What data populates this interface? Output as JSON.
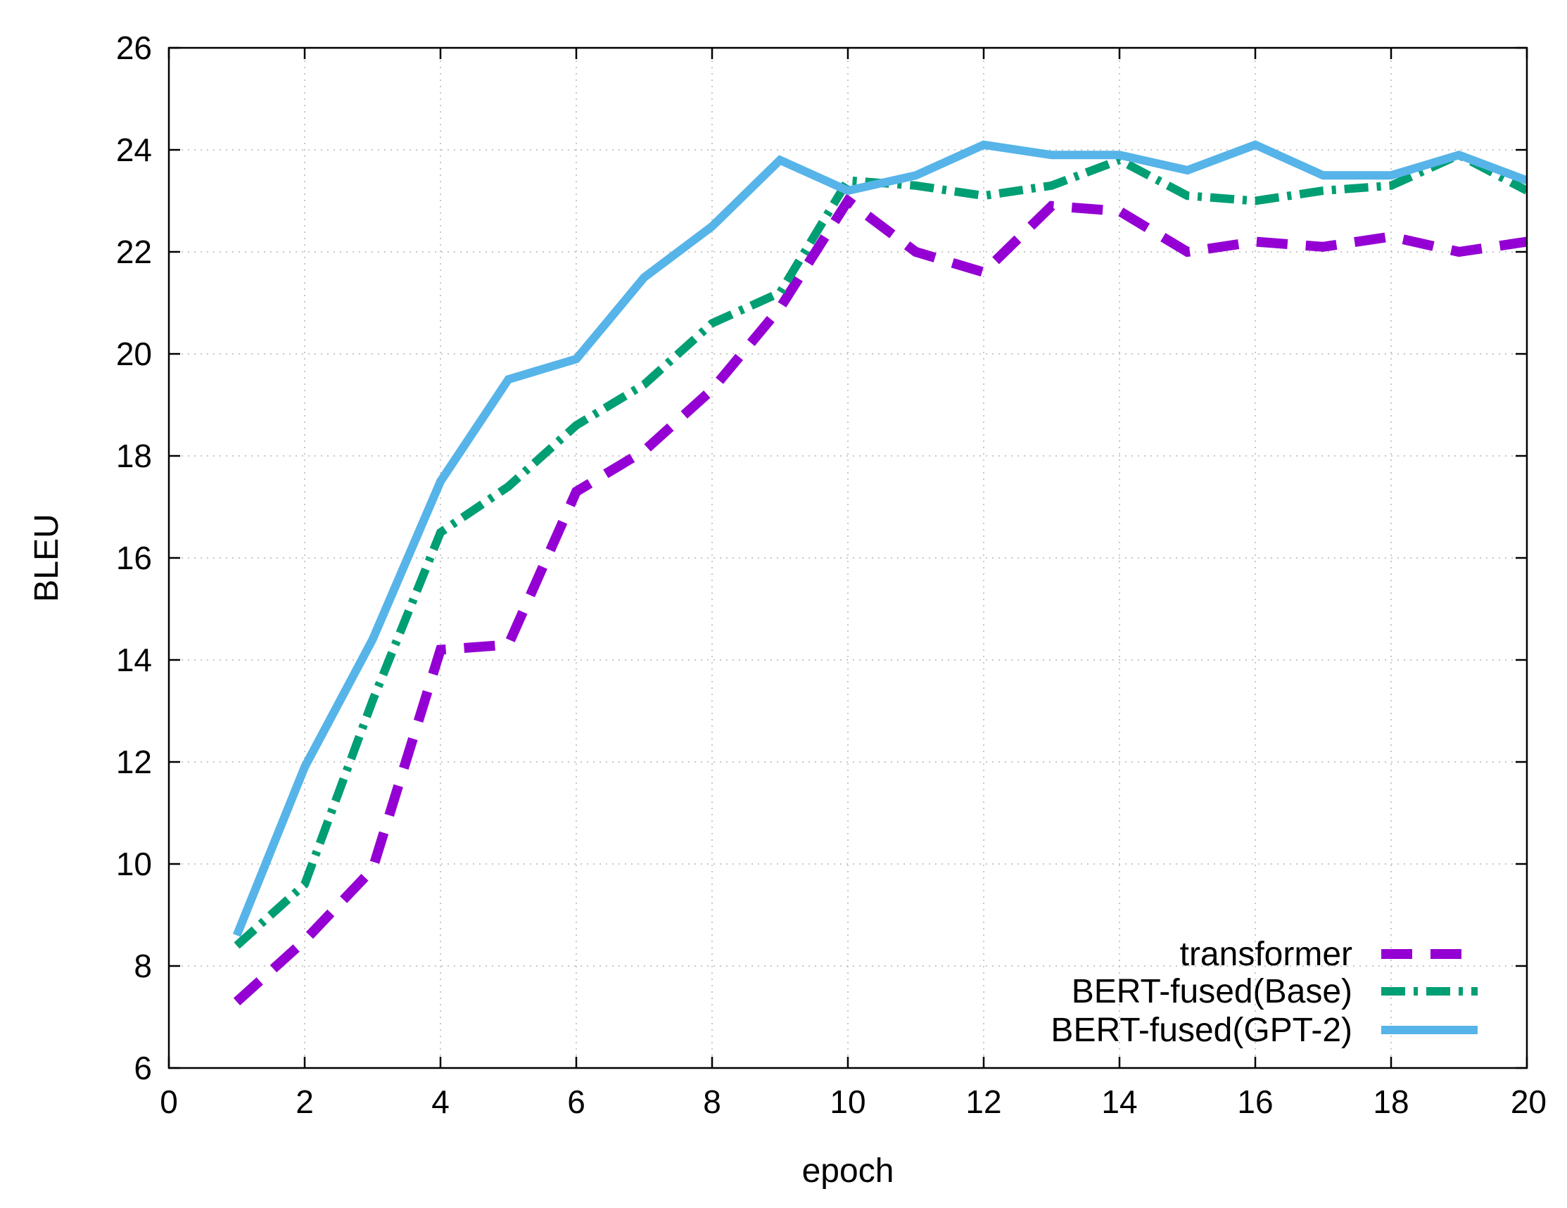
{
  "chart_data": {
    "type": "line",
    "title": "",
    "xlabel": "epoch",
    "ylabel": "BLEU",
    "xlim": [
      0,
      20
    ],
    "ylim": [
      6,
      26
    ],
    "xticks": [
      0,
      2,
      4,
      6,
      8,
      10,
      12,
      14,
      16,
      18,
      20
    ],
    "yticks": [
      6,
      8,
      10,
      12,
      14,
      16,
      18,
      20,
      22,
      24,
      26
    ],
    "grid": true,
    "legend_position": "bottom-right",
    "series": [
      {
        "name": "transformer",
        "color": "#9400D3",
        "style": "dashed",
        "x": [
          1,
          2,
          3,
          4,
          5,
          6,
          7,
          8,
          9,
          10,
          11,
          12,
          13,
          14,
          15,
          16,
          17,
          18,
          19,
          20
        ],
        "values": [
          7.3,
          8.5,
          9.9,
          14.2,
          14.3,
          17.3,
          18.1,
          19.3,
          20.9,
          23.0,
          22.0,
          21.6,
          22.9,
          22.8,
          22.0,
          22.2,
          22.1,
          22.3,
          22.0,
          22.2
        ]
      },
      {
        "name": "BERT-fused(Base)",
        "color": "#009E73",
        "style": "dashdot",
        "x": [
          1,
          2,
          3,
          4,
          5,
          6,
          7,
          8,
          9,
          10,
          11,
          12,
          13,
          14,
          15,
          16,
          17,
          18,
          19,
          20
        ],
        "values": [
          8.4,
          9.6,
          13.2,
          16.5,
          17.4,
          18.6,
          19.4,
          20.6,
          21.2,
          23.4,
          23.3,
          23.1,
          23.3,
          23.8,
          23.1,
          23.0,
          23.2,
          23.3,
          23.9,
          23.2
        ]
      },
      {
        "name": "BERT-fused(GPT-2)",
        "color": "#56B4E9",
        "style": "solid",
        "x": [
          1,
          2,
          3,
          4,
          5,
          6,
          7,
          8,
          9,
          10,
          11,
          12,
          13,
          14,
          15,
          16,
          17,
          18,
          19,
          20
        ],
        "values": [
          8.6,
          11.9,
          14.4,
          17.5,
          19.5,
          19.9,
          21.5,
          22.5,
          23.8,
          23.2,
          23.5,
          24.1,
          23.9,
          23.9,
          23.6,
          24.1,
          23.5,
          23.5,
          23.9,
          23.4
        ]
      }
    ]
  }
}
